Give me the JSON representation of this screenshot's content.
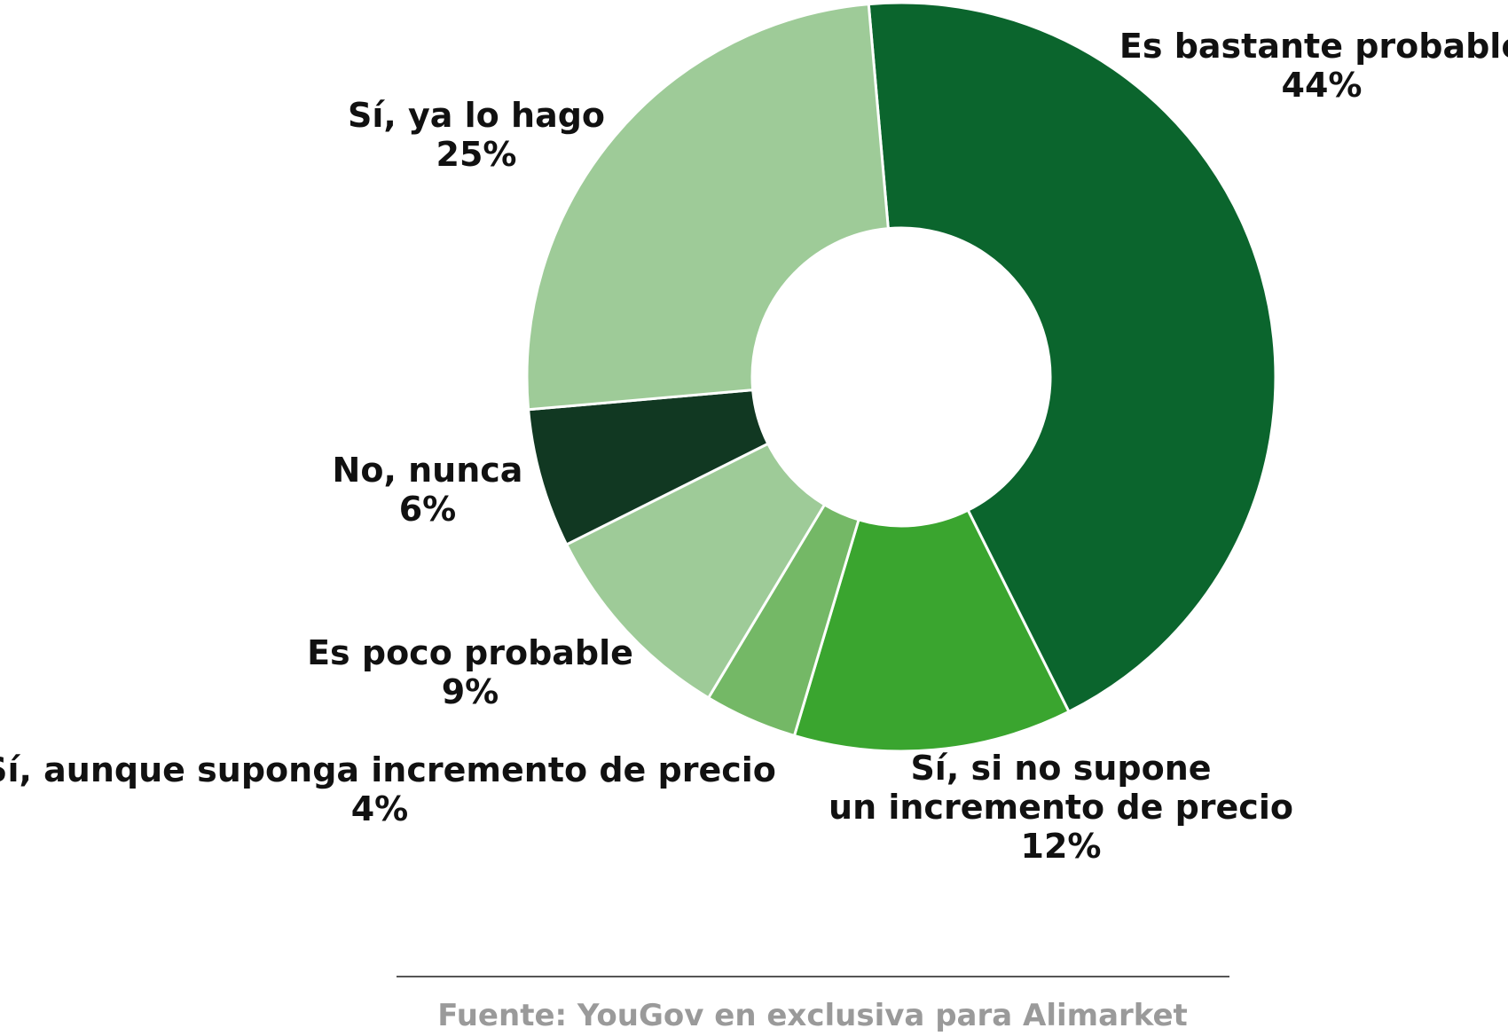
{
  "chart_data": {
    "type": "pie",
    "donut": true,
    "slices": [
      {
        "label_lines": [
          "Es bastante probable"
        ],
        "value": 44,
        "value_label": "44%",
        "color": "#0b652d"
      },
      {
        "label_lines": [
          "Sí, si no supone",
          "un incremento de precio"
        ],
        "value": 12,
        "value_label": "12%",
        "color": "#3aa52f"
      },
      {
        "label_lines": [
          "Sí, aunque suponga incremento de precio"
        ],
        "value": 4,
        "value_label": "4%",
        "color": "#74b866"
      },
      {
        "label_lines": [
          "Es poco probable"
        ],
        "value": 9,
        "value_label": "9%",
        "color": "#9ecb98"
      },
      {
        "label_lines": [
          "No, nunca"
        ],
        "value": 6,
        "value_label": "6%",
        "color": "#113822"
      },
      {
        "label_lines": [
          "Sí, ya lo hago"
        ],
        "value": 25,
        "value_label": "25%",
        "color": "#9ecb98"
      }
    ],
    "legend": "none"
  },
  "source": "Fuente: YouGov en exclusiva para Alimarket"
}
